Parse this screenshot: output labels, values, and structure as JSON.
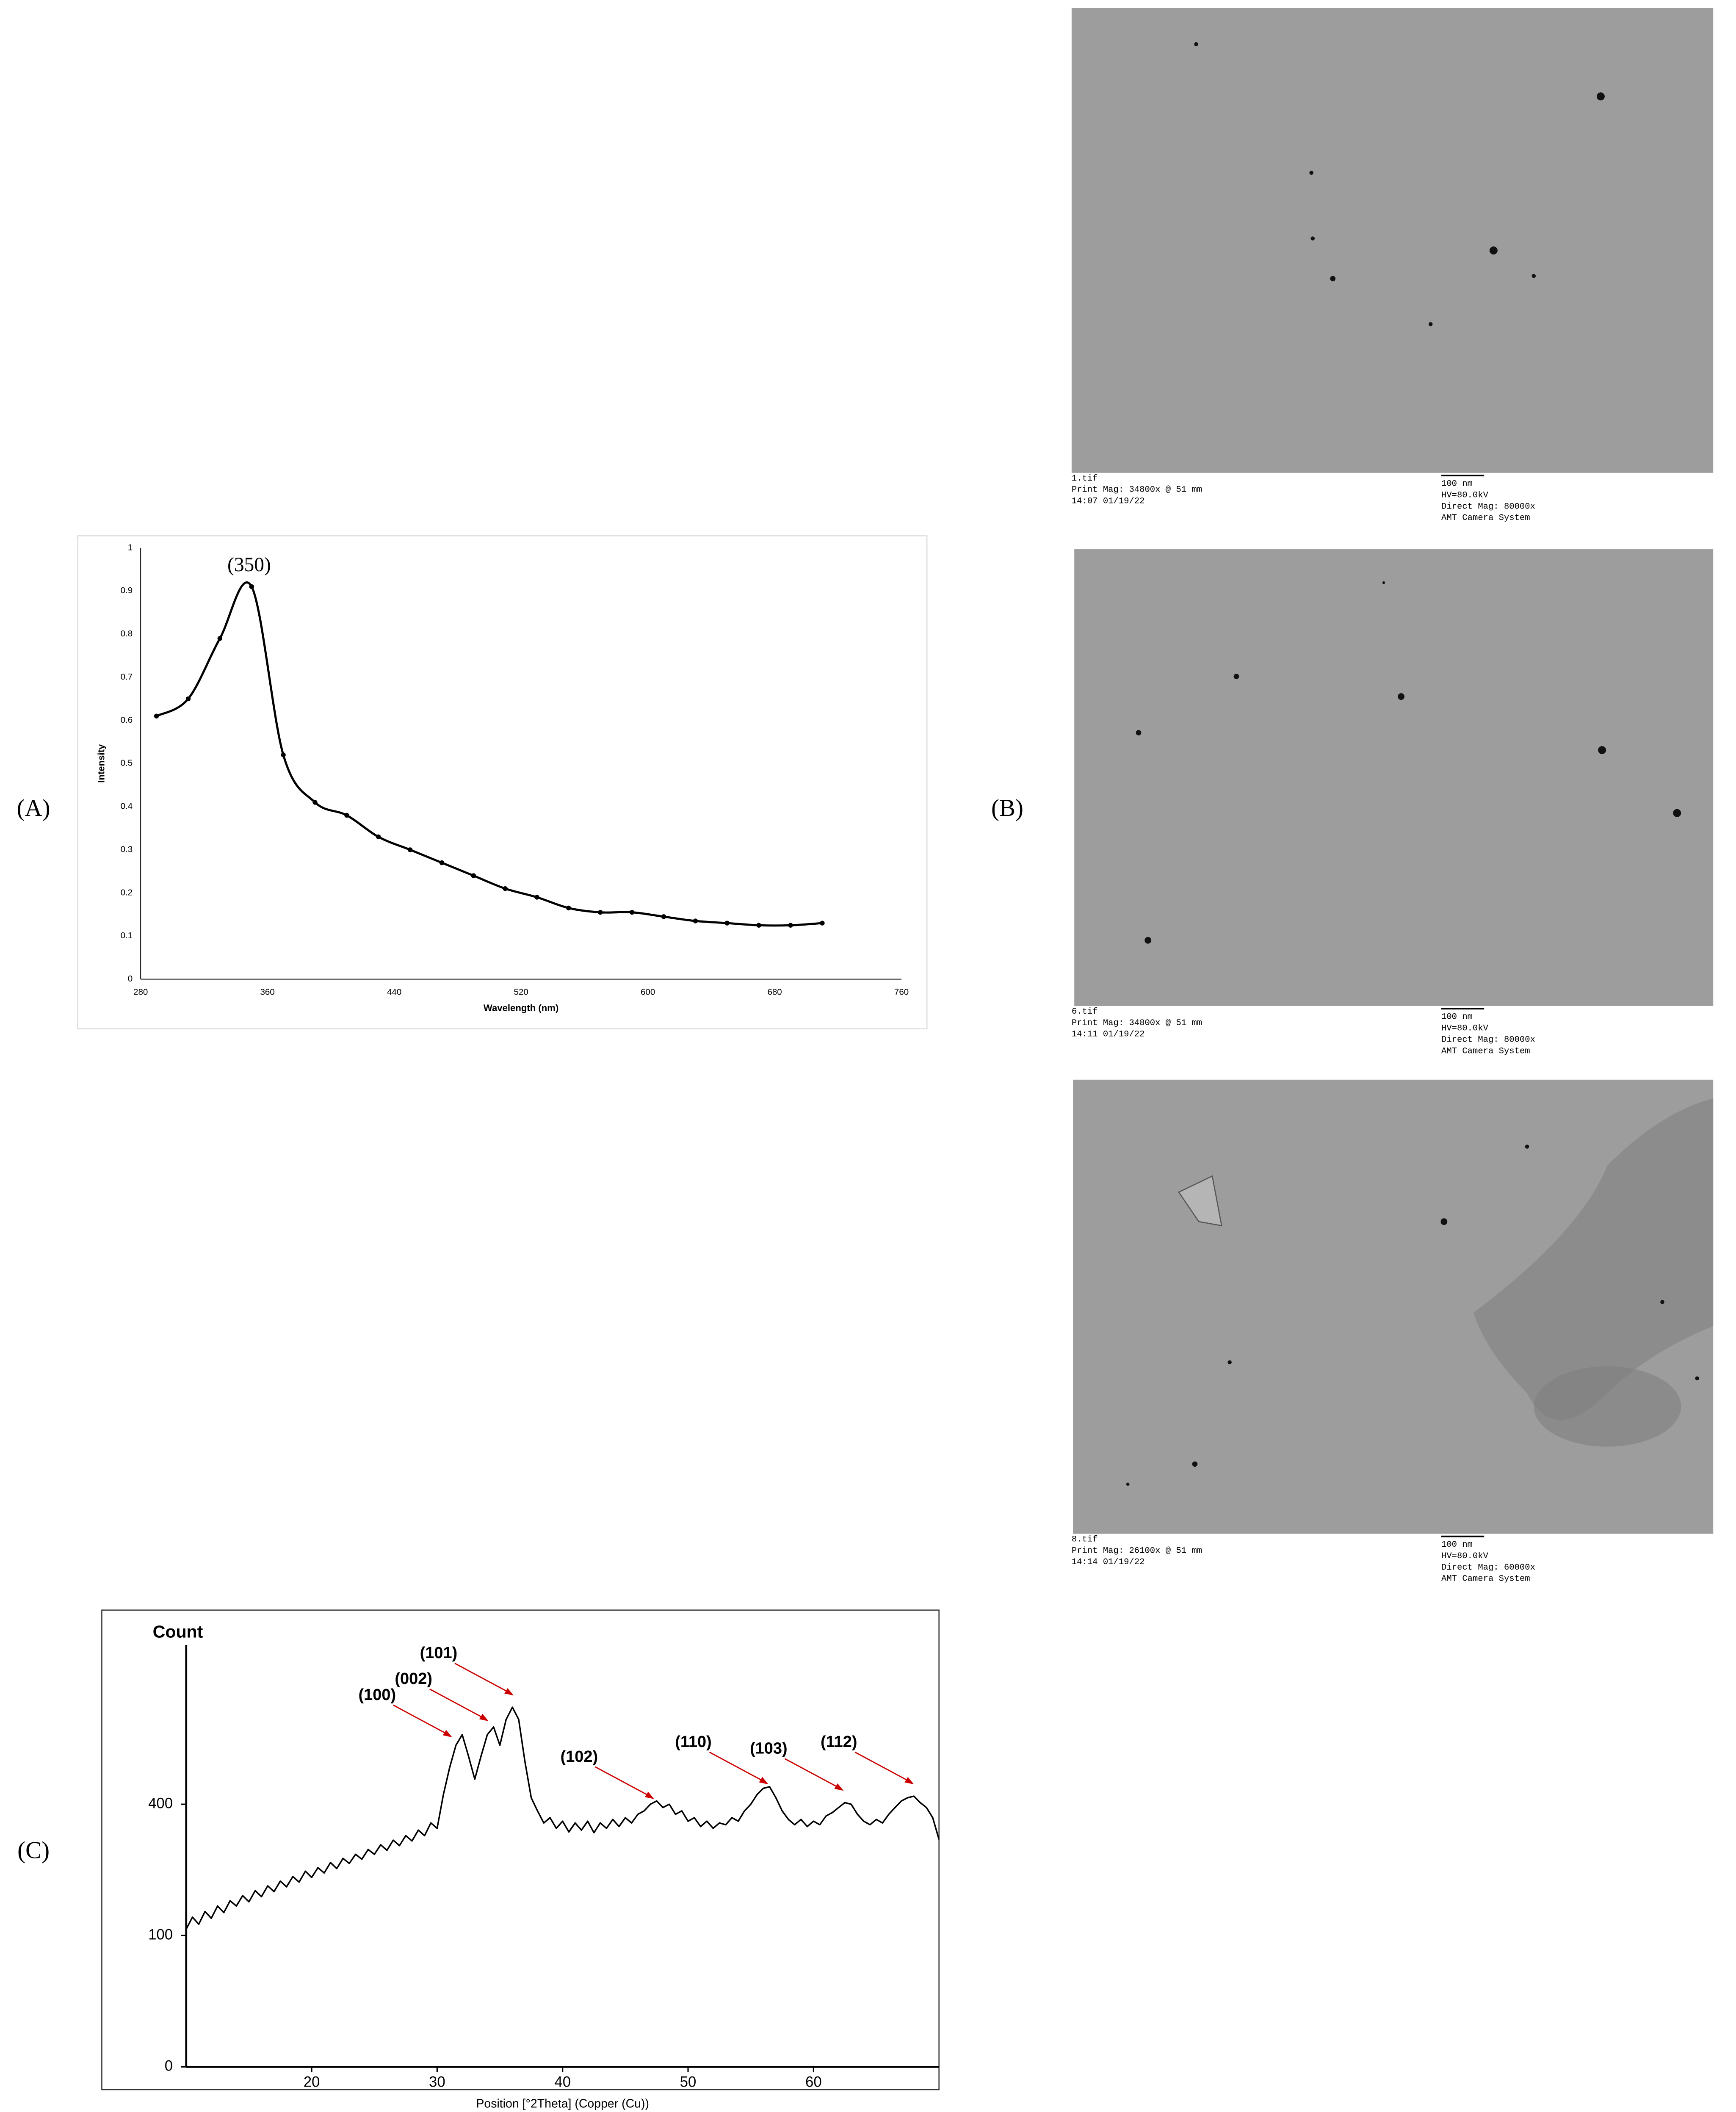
{
  "panel_labels": [
    "(A)",
    "(B)",
    "(C)"
  ],
  "chart_data": [
    {
      "type": "line",
      "annotation": "(350)",
      "xlabel": "Wavelength (nm)",
      "ylabel": "Intensity",
      "x": [
        290,
        310,
        330,
        350,
        370,
        390,
        410,
        430,
        450,
        470,
        490,
        510,
        530,
        550,
        570,
        590,
        610,
        630,
        650,
        670,
        690,
        710
      ],
      "series": [
        {
          "color": "#000000",
          "values": [
            0.61,
            0.65,
            0.79,
            0.91,
            0.52,
            0.41,
            0.38,
            0.33,
            0.3,
            0.27,
            0.24,
            0.21,
            0.19,
            0.165,
            0.155,
            0.155,
            0.145,
            0.135,
            0.13,
            0.125,
            0.125,
            0.13
          ]
        }
      ],
      "xlim": [
        280,
        760
      ],
      "xticks": [
        280,
        360,
        440,
        520,
        600,
        680,
        760
      ],
      "ylim": [
        0,
        1
      ],
      "yticks": [
        0,
        0.1,
        0.2,
        0.3,
        0.4,
        0.5,
        0.6,
        0.7,
        0.8,
        0.9,
        1
      ]
    },
    {
      "type": "line",
      "ylabel": "Count",
      "xlabel": "Position [°2Theta] (Copper (Cu))",
      "yscale": "sqrt",
      "x": [
        10,
        10.5,
        11,
        11.5,
        12,
        12.5,
        13,
        13.5,
        14,
        14.5,
        15,
        15.5,
        16,
        16.5,
        17,
        17.5,
        18,
        18.5,
        19,
        19.5,
        20,
        20.5,
        21,
        21.5,
        22,
        22.5,
        23,
        23.5,
        24,
        24.5,
        25,
        25.5,
        26,
        26.5,
        27,
        27.5,
        28,
        28.5,
        29,
        29.5,
        30,
        30.5,
        31,
        31.5,
        32,
        32.5,
        33,
        33.5,
        34,
        34.5,
        35,
        35.5,
        36,
        36.5,
        37,
        37.5,
        38,
        38.5,
        39,
        39.5,
        40,
        40.5,
        41,
        41.5,
        42,
        42.5,
        43,
        43.5,
        44,
        44.5,
        45,
        45.5,
        46,
        46.5,
        47,
        47.5,
        48,
        48.5,
        49,
        49.5,
        50,
        50.5,
        51,
        51.5,
        52,
        52.5,
        53,
        53.5,
        54,
        54.5,
        55,
        55.5,
        56,
        56.5,
        57,
        57.5,
        58,
        58.5,
        59,
        59.5,
        60,
        60.5,
        61,
        61.5,
        62,
        62.5,
        63,
        63.5,
        64,
        64.5,
        65,
        65.5,
        66,
        66.5,
        67,
        67.5,
        68,
        68.5,
        69,
        69.5,
        70
      ],
      "series": [
        {
          "color": "#000000",
          "values": [
            110,
            130,
            118,
            140,
            128,
            150,
            138,
            160,
            150,
            170,
            158,
            180,
            168,
            190,
            178,
            200,
            188,
            210,
            198,
            222,
            208,
            230,
            218,
            242,
            228,
            252,
            240,
            262,
            250,
            274,
            262,
            286,
            272,
            298,
            284,
            310,
            296,
            325,
            310,
            345,
            330,
            430,
            520,
            600,
            640,
            560,
            480,
            560,
            640,
            670,
            600,
            700,
            750,
            700,
            540,
            420,
            380,
            345,
            360,
            330,
            350,
            320,
            345,
            325,
            350,
            318,
            345,
            330,
            355,
            335,
            360,
            345,
            370,
            380,
            400,
            410,
            390,
            400,
            370,
            380,
            350,
            360,
            335,
            350,
            330,
            345,
            340,
            360,
            350,
            380,
            400,
            430,
            450,
            455,
            420,
            380,
            355,
            340,
            355,
            335,
            350,
            340,
            365,
            375,
            390,
            405,
            400,
            370,
            350,
            340,
            355,
            345,
            370,
            390,
            410,
            420,
            425,
            405,
            390,
            360,
            300
          ]
        }
      ],
      "annotations": [
        {
          "text": "(100)",
          "x": 31.2,
          "y": 630
        },
        {
          "text": "(002)",
          "x": 34.1,
          "y": 693
        },
        {
          "text": "(101)",
          "x": 36.1,
          "y": 800
        },
        {
          "text": "(102)",
          "x": 47.3,
          "y": 416
        },
        {
          "text": "(110)",
          "x": 56.4,
          "y": 463
        },
        {
          "text": "(103)",
          "x": 62.4,
          "y": 442
        },
        {
          "text": "(112)",
          "x": 68,
          "y": 463
        }
      ],
      "annotation_color": "#cc0000",
      "xlim": [
        10,
        70
      ],
      "xticks": [
        20,
        30,
        40,
        50,
        60
      ],
      "ylim": [
        0,
        1000
      ],
      "yticks": [
        0,
        100,
        400
      ]
    }
  ],
  "tem_images": [
    {
      "file": "1.tif",
      "print_mag": "Print Mag: 34800x @ 51 mm",
      "timestamp": "14:07 01/19/22",
      "scale_bar": "100 nm",
      "hv": "HV=80.0kV",
      "direct_mag": "Direct Mag: 80000x",
      "camera": "AMT Camera System"
    },
    {
      "file": "6.tif",
      "print_mag": "Print Mag: 34800x @ 51 mm",
      "timestamp": "14:11 01/19/22",
      "scale_bar": "100 nm",
      "hv": "HV=80.0kV",
      "direct_mag": "Direct Mag: 80000x",
      "camera": "AMT Camera System"
    },
    {
      "file": "8.tif",
      "print_mag": "Print Mag: 26100x @ 51 mm",
      "timestamp": "14:14 01/19/22",
      "scale_bar": "100 nm",
      "hv": "HV=80.0kV",
      "direct_mag": "Direct Mag: 60000x",
      "camera": "AMT Camera System"
    }
  ]
}
